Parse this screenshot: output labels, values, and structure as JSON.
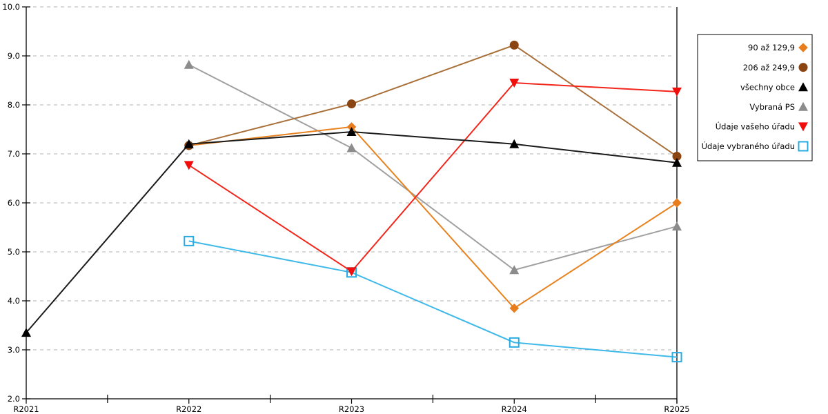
{
  "colors": {
    "background": "#ffffff",
    "axis": "#000000",
    "grid": "#b3b3b3",
    "legend_border": "#000000",
    "legend_background": "#ffffff"
  },
  "chart_data": {
    "type": "line",
    "title": "",
    "xlabel": "",
    "ylabel": "",
    "categories": [
      "R2021",
      "R2022",
      "R2023",
      "R2024",
      "R2025"
    ],
    "ylim": [
      2.0,
      10.0
    ],
    "ytick_step": 1.0,
    "ytick_labels": [
      "2.0",
      "3.0",
      "4.0",
      "5.0",
      "6.0",
      "7.0",
      "8.0",
      "9.0",
      "10.0"
    ],
    "grid": "horizontal-dashed",
    "legend_position": "right",
    "x_minor_ticks": "midpoints",
    "right_boundary_line": true,
    "draw_order": [
      3,
      5,
      0,
      1,
      4,
      2
    ],
    "series": [
      {
        "name": "90 až 129,9",
        "marker": "diamond",
        "color": "#e87d1e",
        "line_color": "#e8821e",
        "values": [
          null,
          7.17,
          7.55,
          3.85,
          6.0
        ]
      },
      {
        "name": "206 až 249,9",
        "marker": "circle",
        "color": "#8b4513",
        "line_color": "#a9703a",
        "values": [
          null,
          7.17,
          8.02,
          9.22,
          6.95
        ]
      },
      {
        "name": "všechny obce",
        "marker": "triangle-up",
        "color": "#000000",
        "line_color": "#1a1a1a",
        "values": [
          3.35,
          7.2,
          7.45,
          7.2,
          6.82
        ]
      },
      {
        "name": "Vybraná PS",
        "marker": "triangle-up",
        "color": "#8c8c8c",
        "line_color": "#a0a0a0",
        "values": [
          null,
          8.82,
          7.12,
          4.63,
          5.52
        ]
      },
      {
        "name": "Údaje vašeho úřadu",
        "marker": "triangle-down",
        "color": "#f20d0d",
        "line_color": "#f2261a",
        "values": [
          null,
          6.77,
          4.6,
          8.45,
          8.27
        ]
      },
      {
        "name": "Údaje vybraného úřadu",
        "marker": "square-open",
        "color": "#29abe2",
        "line_color": "#3fb9e8",
        "values": [
          null,
          5.22,
          4.58,
          3.15,
          2.85
        ]
      }
    ]
  }
}
